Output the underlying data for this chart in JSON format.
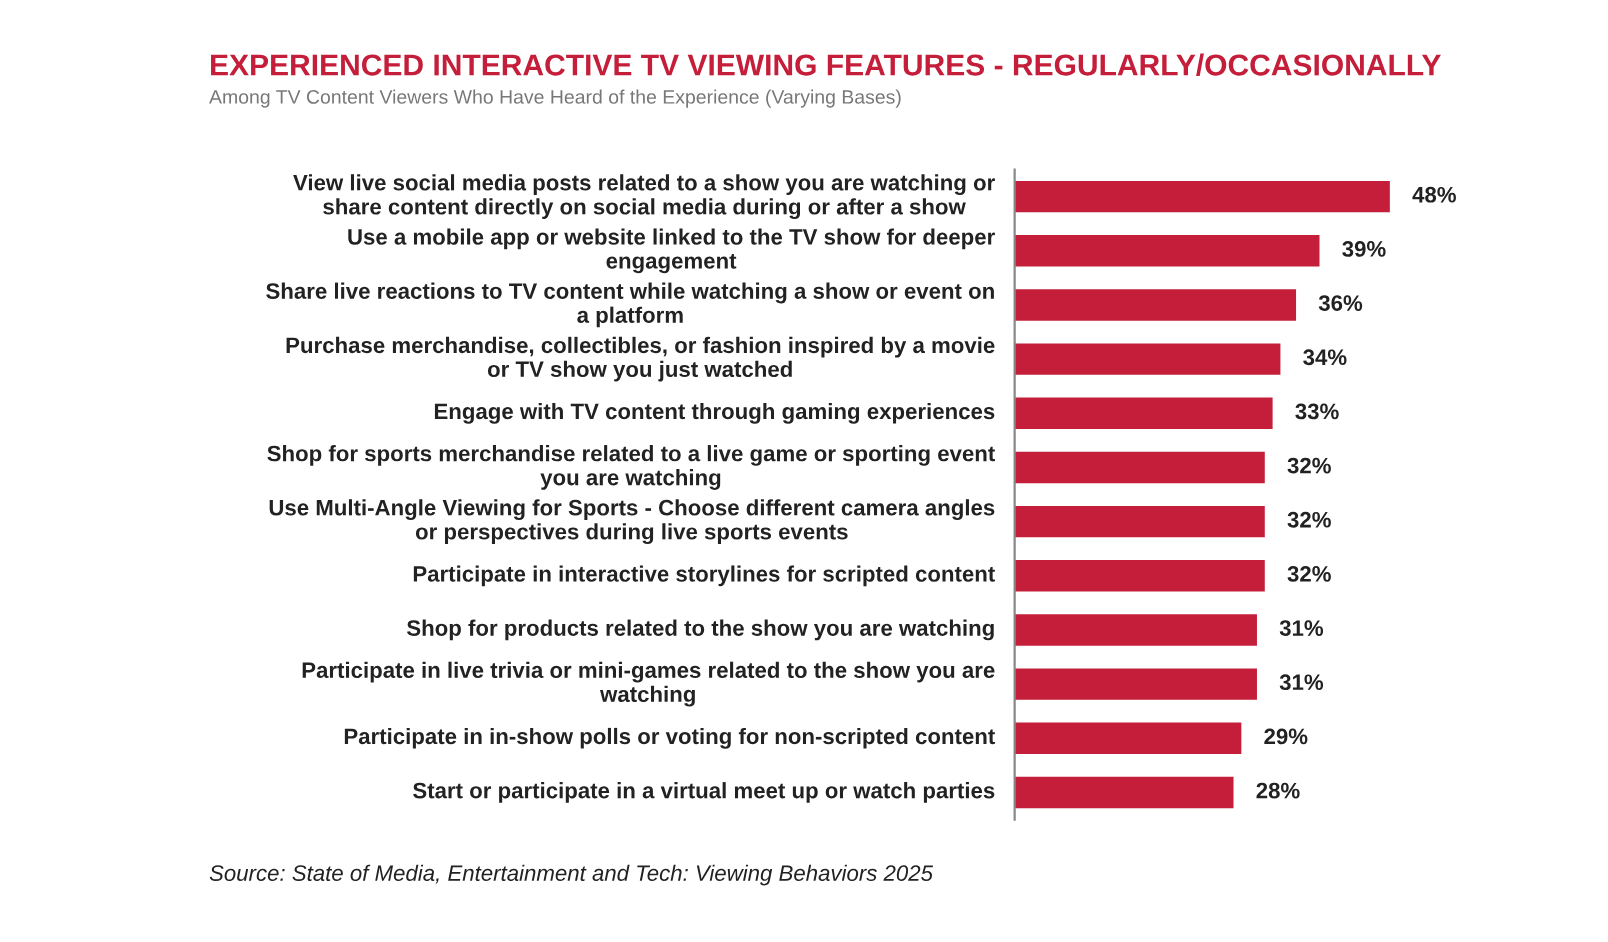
{
  "chart_data": {
    "type": "bar",
    "orientation": "horizontal",
    "title": "EXPERIENCED INTERACTIVE TV VIEWING FEATURES - REGULARLY/OCCASIONALLY",
    "subtitle": "Among TV Content Viewers Who Have Heard of the Experience (Varying Bases)",
    "categories": [
      "View live social media posts related to a show you are watching or share content directly on social media during or after a show",
      "Use a mobile app or website linked to the TV show for deeper engagement",
      "Share live reactions to TV content while watching a show or event on a platform",
      "Purchase merchandise, collectibles, or fashion inspired by a movie or TV show you just watched",
      "Engage with TV content through gaming experiences",
      "Shop for sports merchandise related to a live game or sporting event you are watching",
      "Use Multi-Angle Viewing for Sports - Choose different camera angles or perspectives during live sports events",
      "Participate in interactive storylines for scripted content",
      "Shop for products related to the show you are watching",
      "Participate in live trivia or mini-games related to the show you are watching",
      "Participate in in-show polls or voting for non-scripted content",
      "Start or participate in a virtual meet up or watch parties"
    ],
    "values": [
      48,
      39,
      36,
      34,
      33,
      32,
      32,
      32,
      31,
      31,
      29,
      28
    ],
    "value_labels": [
      "48%",
      "39%",
      "36%",
      "34%",
      "33%",
      "32%",
      "32%",
      "32%",
      "31%",
      "31%",
      "29%",
      "28%"
    ],
    "color": "#c41e3a",
    "annotations": [
      "Source: State of Media, Entertainment and Tech: Viewing Behaviors 2025"
    ]
  }
}
